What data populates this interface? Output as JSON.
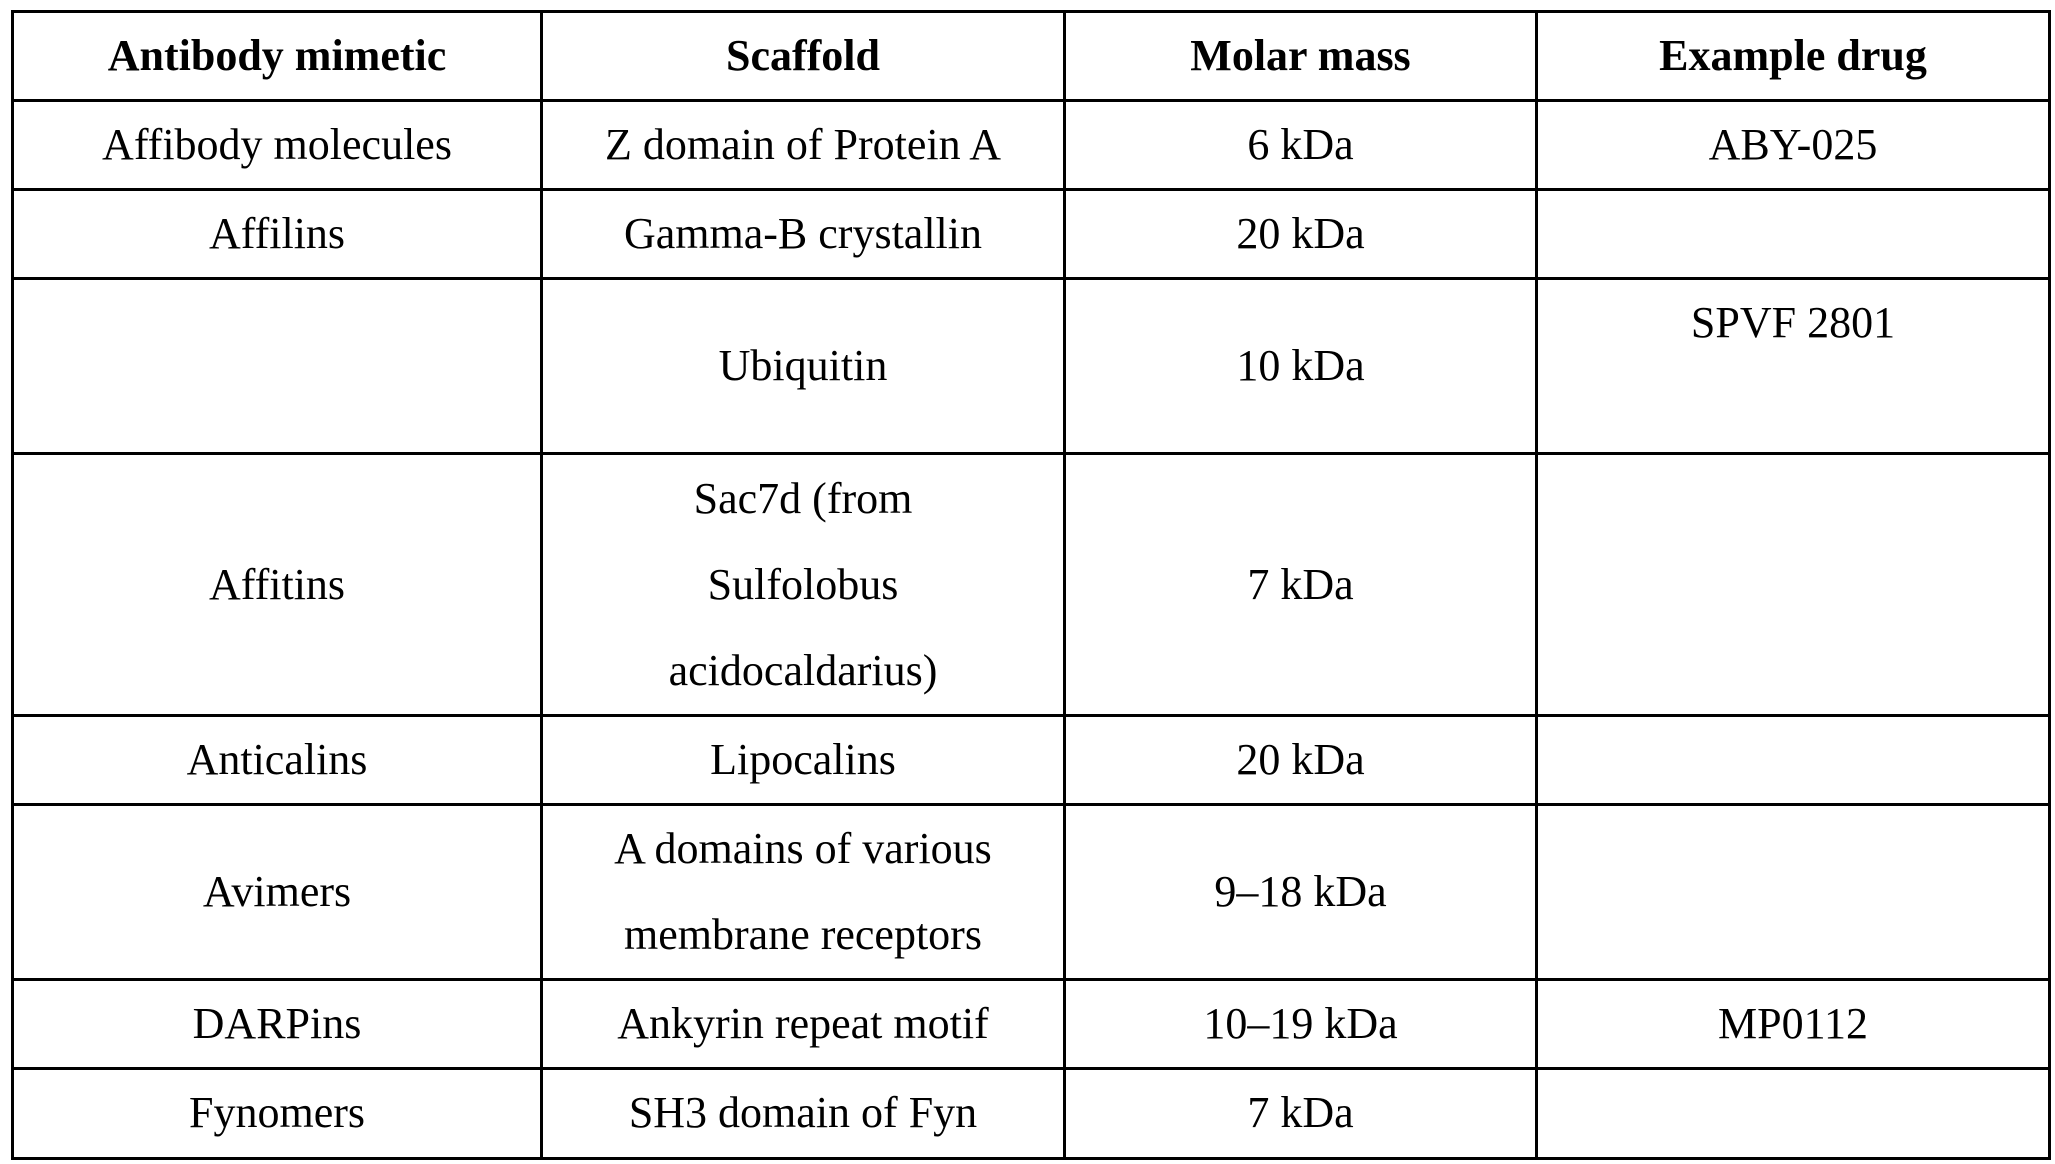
{
  "table": {
    "headers": [
      "Antibody mimetic",
      "Scaffold",
      "Molar mass",
      "Example drug"
    ],
    "rows": [
      {
        "mimetic": "Affibody molecules",
        "scaffold": [
          "Z domain of Protein A"
        ],
        "mass": "6 kDa",
        "drug": "ABY-025"
      },
      {
        "mimetic": "Affilins",
        "scaffold": [
          "Gamma-B crystallin"
        ],
        "mass": "20 kDa",
        "drug": ""
      },
      {
        "mimetic": "",
        "scaffold": [
          "Ubiquitin"
        ],
        "mass": "10 kDa",
        "drug": "SPVF 2801"
      },
      {
        "mimetic": "Affitins",
        "scaffold": [
          "Sac7d (from",
          "Sulfolobus",
          "acidocaldarius)"
        ],
        "mass": "7 kDa",
        "drug": ""
      },
      {
        "mimetic": "Anticalins",
        "scaffold": [
          "Lipocalins"
        ],
        "mass": "20 kDa",
        "drug": ""
      },
      {
        "mimetic": "Avimers",
        "scaffold": [
          "A domains of various",
          "membrane receptors"
        ],
        "mass": "9–18 kDa",
        "drug": ""
      },
      {
        "mimetic": "DARPins",
        "scaffold": [
          "Ankyrin repeat motif"
        ],
        "mass": "10–19 kDa",
        "drug": "MP0112"
      },
      {
        "mimetic": "Fynomers",
        "scaffold": [
          "SH3 domain of Fyn"
        ],
        "mass": "7 kDa",
        "drug": ""
      }
    ]
  }
}
